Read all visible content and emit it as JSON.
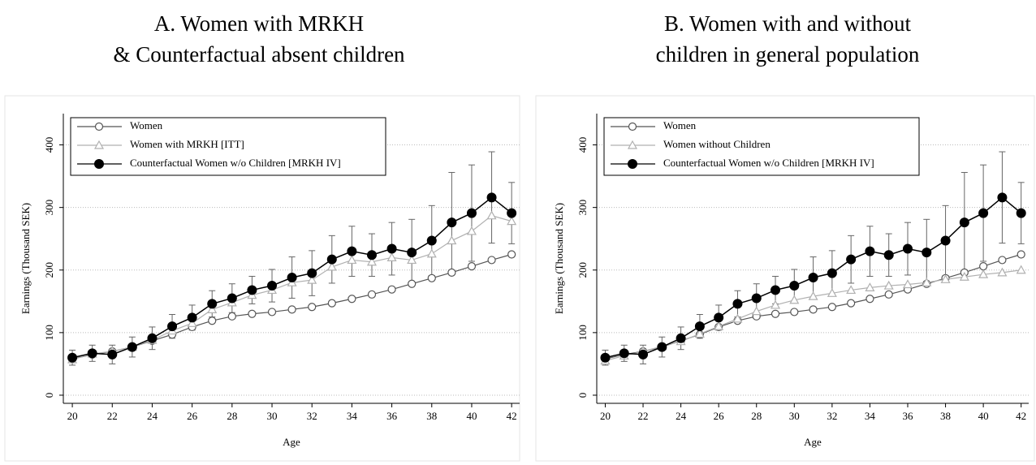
{
  "chart_data": [
    {
      "type": "line",
      "title": [
        "A. Women with MRKH",
        "& Counterfactual absent children"
      ],
      "xlabel": "Age",
      "ylabel": "Earnings (Thousand SEK)",
      "x": [
        20,
        21,
        22,
        23,
        24,
        25,
        26,
        27,
        28,
        29,
        30,
        31,
        32,
        33,
        34,
        35,
        36,
        37,
        38,
        39,
        40,
        41,
        42
      ],
      "xlim": [
        19.55,
        42.4
      ],
      "ylim": [
        -13,
        450
      ],
      "xticks": [
        20,
        22,
        24,
        26,
        28,
        30,
        32,
        34,
        36,
        38,
        40,
        42
      ],
      "yticks": [
        0,
        100,
        200,
        300,
        400
      ],
      "grid": true,
      "legend": "upper left",
      "series": [
        {
          "name": "Women",
          "color": "#555555",
          "marker": "circle-open",
          "values": [
            58,
            65,
            70,
            77,
            87,
            97,
            109,
            119,
            126,
            130,
            133,
            137,
            141,
            147,
            154,
            161,
            169,
            178,
            187,
            196,
            206,
            216,
            225
          ]
        },
        {
          "name": "Women with MRKH [ITT]",
          "color": "#b0b0b0",
          "marker": "triangle-open",
          "values": [
            57,
            66,
            70,
            77,
            88,
            103,
            115,
            137,
            148,
            160,
            168,
            180,
            184,
            205,
            216,
            213,
            220,
            216,
            226,
            247,
            262,
            287,
            278
          ]
        },
        {
          "name": "Counterfactual Women w/o Children [MRKH IV]",
          "color": "#000000",
          "marker": "circle-filled",
          "values": [
            60,
            67,
            65,
            77,
            91,
            110,
            124,
            146,
            155,
            168,
            175,
            188,
            195,
            217,
            230,
            224,
            234,
            228,
            247,
            276,
            291,
            316,
            291
          ],
          "errors": [
            12,
            13,
            15,
            16,
            18,
            19,
            20,
            21,
            23,
            22,
            26,
            33,
            36,
            38,
            40,
            34,
            42,
            53,
            56,
            80,
            77,
            73,
            49
          ]
        }
      ]
    },
    {
      "type": "line",
      "title": [
        "B. Women with and without",
        "children in general population"
      ],
      "xlabel": "Age",
      "ylabel": "Earnings (Thousand SEK)",
      "x": [
        20,
        21,
        22,
        23,
        24,
        25,
        26,
        27,
        28,
        29,
        30,
        31,
        32,
        33,
        34,
        35,
        36,
        37,
        38,
        39,
        40,
        41,
        42
      ],
      "xlim": [
        19.55,
        42.4
      ],
      "ylim": [
        -13,
        450
      ],
      "xticks": [
        20,
        22,
        24,
        26,
        28,
        30,
        32,
        34,
        36,
        38,
        40,
        42
      ],
      "yticks": [
        0,
        100,
        200,
        300,
        400
      ],
      "grid": true,
      "legend": "upper left",
      "series": [
        {
          "name": "Women",
          "color": "#555555",
          "marker": "circle-open",
          "values": [
            58,
            65,
            70,
            77,
            87,
            97,
            109,
            119,
            126,
            130,
            133,
            137,
            141,
            147,
            154,
            161,
            169,
            178,
            187,
            196,
            206,
            216,
            225
          ]
        },
        {
          "name": "Women without Children",
          "color": "#b0b0b0",
          "marker": "triangle-open",
          "values": [
            55,
            63,
            70,
            78,
            86,
            98,
            110,
            122,
            134,
            144,
            152,
            158,
            163,
            168,
            172,
            175,
            177,
            180,
            185,
            189,
            193,
            196,
            200
          ]
        },
        {
          "name": "Counterfactual Women w/o Children [MRKH IV]",
          "color": "#000000",
          "marker": "circle-filled",
          "values": [
            60,
            67,
            65,
            77,
            91,
            110,
            124,
            146,
            155,
            168,
            175,
            188,
            195,
            217,
            230,
            224,
            234,
            228,
            247,
            276,
            291,
            316,
            291
          ],
          "errors": [
            12,
            13,
            15,
            16,
            18,
            19,
            20,
            21,
            23,
            22,
            26,
            33,
            36,
            38,
            40,
            34,
            42,
            53,
            56,
            80,
            77,
            73,
            49
          ]
        }
      ]
    }
  ]
}
